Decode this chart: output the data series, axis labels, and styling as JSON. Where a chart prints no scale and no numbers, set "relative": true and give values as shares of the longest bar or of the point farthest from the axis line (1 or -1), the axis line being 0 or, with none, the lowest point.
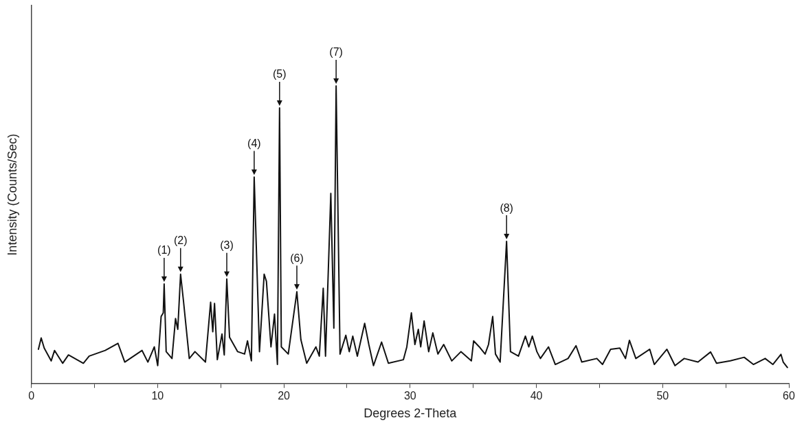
{
  "chart_data": {
    "type": "line",
    "xlabel": "Degrees 2-Theta",
    "ylabel": "Intensity (Counts/Sec)",
    "relative": true,
    "xlim": [
      0,
      60
    ],
    "xticks": [
      0,
      {
        "value": 5,
        "label": null
      },
      10,
      {
        "value": 15,
        "label": null
      },
      20,
      {
        "value": 25,
        "label": null
      },
      30,
      {
        "value": 35,
        "label": null
      },
      40,
      {
        "value": 45,
        "label": null
      },
      50,
      {
        "value": 55,
        "label": null
      },
      60
    ],
    "grid": false,
    "legend": false,
    "marker": "none",
    "line_style": "solid",
    "x": [
      0.56,
      0.78,
      1.02,
      1.57,
      1.84,
      2.48,
      2.94,
      4.12,
      4.58,
      5.85,
      6.86,
      7.4,
      8.77,
      9.23,
      9.74,
      10.01,
      10.28,
      10.45,
      10.52,
      10.68,
      11.14,
      11.42,
      11.6,
      11.82,
      12.05,
      12.51,
      12.96,
      13.79,
      14.2,
      14.37,
      14.51,
      14.73,
      15.1,
      15.28,
      15.48,
      15.7,
      16.34,
      16.89,
      17.12,
      17.43,
      17.65,
      18.07,
      18.44,
      18.62,
      18.98,
      19.26,
      19.49,
      19.66,
      19.8,
      20.35,
      21.03,
      21.35,
      21.81,
      22.54,
      22.81,
      23.12,
      23.3,
      23.72,
      23.96,
      24.14,
      24.45,
      24.91,
      25.18,
      25.46,
      25.82,
      26.4,
      26.73,
      27.1,
      27.74,
      28.28,
      29.47,
      29.74,
      30.1,
      30.38,
      30.65,
      30.84,
      31.11,
      31.47,
      31.8,
      32.2,
      32.66,
      33.3,
      34.03,
      34.85,
      35.03,
      35.48,
      35.94,
      36.21,
      36.54,
      36.76,
      37.13,
      37.64,
      37.95,
      38.58,
      39.13,
      39.4,
      39.68,
      40.04,
      40.32,
      40.96,
      41.5,
      42.51,
      43.14,
      43.6,
      44.79,
      45.24,
      45.88,
      46.61,
      47.06,
      47.37,
      47.88,
      48.98,
      49.34,
      50.34,
      50.98,
      51.71,
      52.8,
      53.8,
      54.27,
      55.36,
      56.46,
      57.19,
      58.12,
      58.73,
      59.37,
      59.55,
      59.88
    ],
    "series": [
      {
        "color": "#111111",
        "values": [
          0.116,
          0.154,
          0.12,
          0.077,
          0.112,
          0.069,
          0.097,
          0.069,
          0.093,
          0.112,
          0.136,
          0.073,
          0.112,
          0.073,
          0.124,
          0.061,
          0.226,
          0.238,
          0.335,
          0.108,
          0.085,
          0.219,
          0.183,
          0.368,
          0.278,
          0.085,
          0.108,
          0.073,
          0.274,
          0.175,
          0.27,
          0.081,
          0.167,
          0.097,
          0.352,
          0.156,
          0.108,
          0.1,
          0.144,
          0.077,
          0.694,
          0.108,
          0.368,
          0.344,
          0.124,
          0.234,
          0.065,
          0.926,
          0.124,
          0.1,
          0.309,
          0.148,
          0.069,
          0.124,
          0.093,
          0.321,
          0.093,
          0.639,
          0.187,
          1.0,
          0.1,
          0.163,
          0.108,
          0.16,
          0.093,
          0.203,
          0.132,
          0.061,
          0.14,
          0.069,
          0.081,
          0.124,
          0.238,
          0.132,
          0.183,
          0.124,
          0.211,
          0.108,
          0.171,
          0.1,
          0.132,
          0.077,
          0.108,
          0.077,
          0.144,
          0.124,
          0.1,
          0.132,
          0.226,
          0.1,
          0.073,
          0.478,
          0.108,
          0.093,
          0.16,
          0.124,
          0.16,
          0.108,
          0.085,
          0.124,
          0.065,
          0.085,
          0.128,
          0.073,
          0.085,
          0.065,
          0.116,
          0.12,
          0.085,
          0.146,
          0.085,
          0.116,
          0.065,
          0.116,
          0.061,
          0.085,
          0.073,
          0.107,
          0.069,
          0.077,
          0.089,
          0.065,
          0.085,
          0.065,
          0.099,
          0.073,
          0.055
        ]
      }
    ],
    "annotations": [
      {
        "text": "(1)",
        "x": 10.52,
        "y": 0.335
      },
      {
        "text": "(2)",
        "x": 11.82,
        "y": 0.368
      },
      {
        "text": "(3)",
        "x": 15.48,
        "y": 0.352
      },
      {
        "text": "(4)",
        "x": 17.65,
        "y": 0.694
      },
      {
        "text": "(5)",
        "x": 19.66,
        "y": 0.926
      },
      {
        "text": "(6)",
        "x": 21.03,
        "y": 0.309
      },
      {
        "text": "(7)",
        "x": 24.14,
        "y": 1.0
      },
      {
        "text": "(8)",
        "x": 37.64,
        "y": 0.478
      }
    ]
  }
}
